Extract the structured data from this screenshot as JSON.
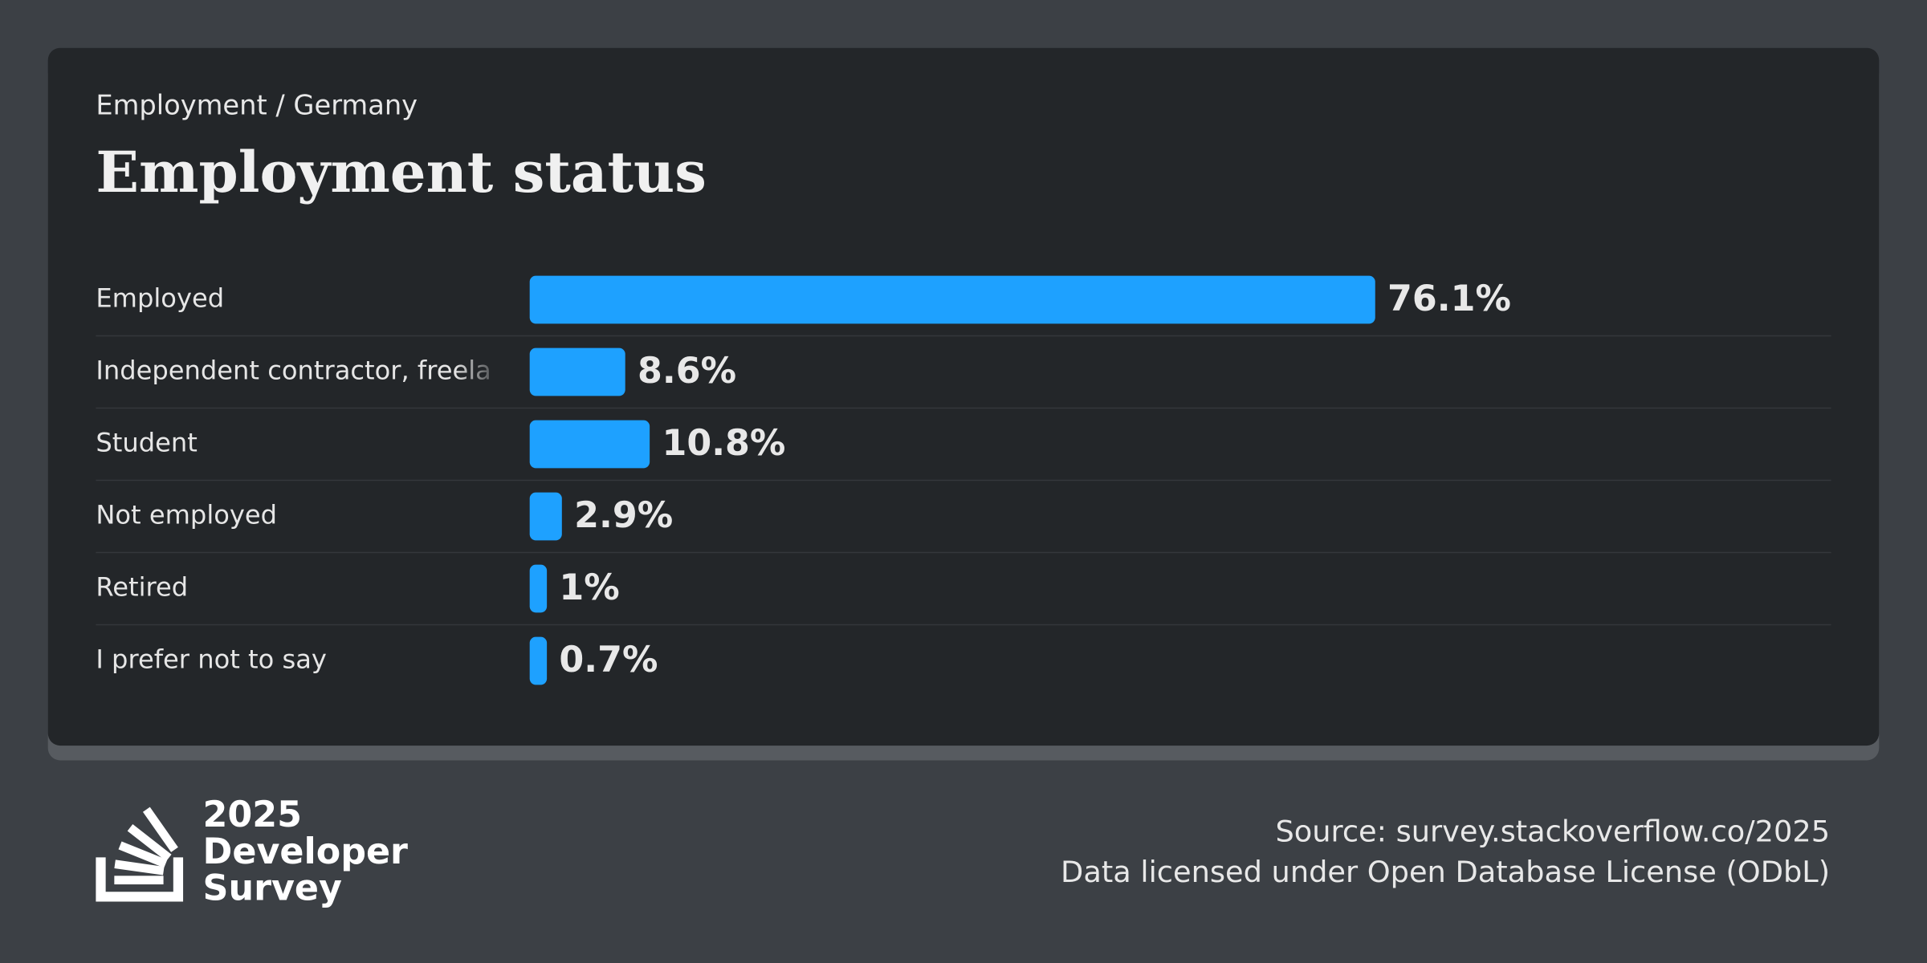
{
  "chart_data": {
    "type": "hbar",
    "subtitle": "Employment / Germany",
    "title": "Employment status",
    "categories": [
      "Employed",
      "Independent contractor, freela",
      "Student",
      "Not employed",
      "Retired",
      "I prefer not to say"
    ],
    "values": [
      76.1,
      8.6,
      10.8,
      2.9,
      1,
      0.7
    ],
    "value_labels": [
      "76.1%",
      "8.6%",
      "10.8%",
      "2.9%",
      "1%",
      "0.7%"
    ],
    "color": "#1ea1ff"
  },
  "footer": {
    "logo_text": [
      "2025",
      "Developer",
      "Survey"
    ],
    "source": "Source: survey.stackoverflow.co/2025",
    "license": "Data licensed under Open Database License (ODbL)"
  }
}
